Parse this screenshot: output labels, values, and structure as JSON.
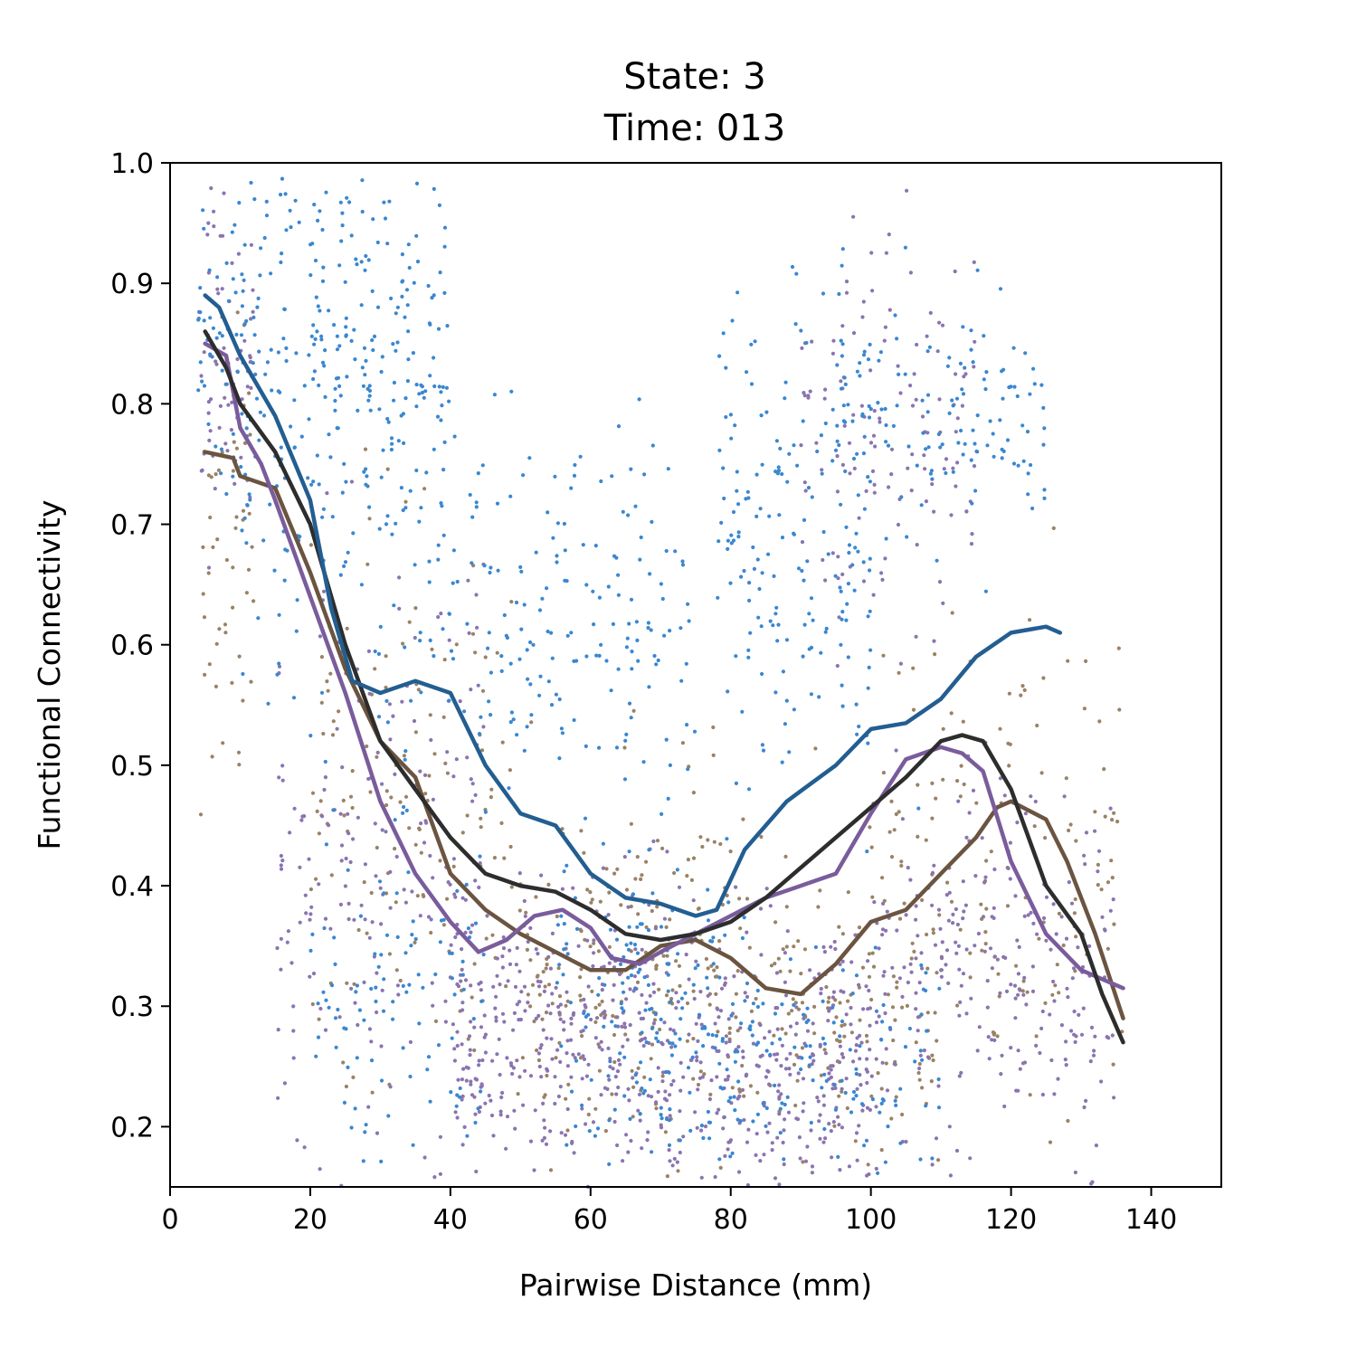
{
  "chart_data": {
    "type": "scatter",
    "title_lines": [
      "State: 3",
      "Time: 013"
    ],
    "xlabel": "Pairwise Distance (mm)",
    "ylabel": "Functional Connectivity",
    "xlim": [
      0,
      150
    ],
    "ylim": [
      0.15,
      1.0
    ],
    "xticks": [
      0,
      20,
      40,
      60,
      80,
      100,
      120,
      140
    ],
    "yticks": [
      0.2,
      0.3,
      0.4,
      0.5,
      0.6,
      0.7,
      0.8,
      0.9,
      1.0
    ],
    "xtick_labels": [
      "0",
      "20",
      "40",
      "60",
      "80",
      "100",
      "120",
      "140"
    ],
    "ytick_labels": [
      "0.2",
      "0.3",
      "0.4",
      "0.5",
      "0.6",
      "0.7",
      "0.8",
      "0.9",
      "1.0"
    ],
    "grid": false,
    "legend": "none",
    "colors": {
      "scatter_blue": "#3a87d0",
      "scatter_purple": "#8a74b0",
      "scatter_brown": "#9a8266",
      "line_blue": "#235e91",
      "line_purple": "#7a5c9c",
      "line_brown": "#6b5440",
      "line_black": "#2d2d2d"
    },
    "scatter_summary": {
      "blue_points_approx": 1300,
      "purple_points_approx": 1300,
      "brown_points_approx": 700,
      "x_range": [
        4,
        136
      ],
      "y_range": [
        0.15,
        0.99
      ]
    },
    "series": [
      {
        "color": "#235e91",
        "x": [
          5,
          7,
          10,
          15,
          20,
          23,
          26,
          30,
          35,
          40,
          45,
          50,
          55,
          60,
          65,
          70,
          75,
          78,
          82,
          88,
          95,
          100,
          105,
          110,
          115,
          120,
          125,
          127
        ],
        "y": [
          0.89,
          0.88,
          0.84,
          0.79,
          0.72,
          0.63,
          0.57,
          0.56,
          0.57,
          0.56,
          0.5,
          0.46,
          0.45,
          0.41,
          0.39,
          0.385,
          0.375,
          0.38,
          0.43,
          0.47,
          0.5,
          0.53,
          0.535,
          0.555,
          0.59,
          0.61,
          0.615,
          0.61
        ]
      },
      {
        "color": "#2d2d2d",
        "x": [
          5,
          8,
          10,
          15,
          20,
          25,
          30,
          35,
          40,
          45,
          50,
          55,
          60,
          65,
          70,
          75,
          80,
          85,
          90,
          95,
          100,
          105,
          110,
          113,
          116,
          120,
          125,
          130,
          133,
          136
        ],
        "y": [
          0.86,
          0.83,
          0.8,
          0.76,
          0.7,
          0.6,
          0.52,
          0.48,
          0.44,
          0.41,
          0.4,
          0.395,
          0.38,
          0.36,
          0.355,
          0.36,
          0.37,
          0.39,
          0.415,
          0.44,
          0.465,
          0.49,
          0.52,
          0.525,
          0.52,
          0.48,
          0.4,
          0.36,
          0.31,
          0.27
        ]
      },
      {
        "color": "#6b5440",
        "x": [
          5,
          9,
          10,
          15,
          20,
          25,
          30,
          35,
          40,
          45,
          50,
          55,
          60,
          65,
          70,
          75,
          80,
          85,
          90,
          95,
          100,
          105,
          110,
          115,
          118,
          120,
          125,
          128,
          132,
          136
        ],
        "y": [
          0.76,
          0.755,
          0.74,
          0.73,
          0.66,
          0.58,
          0.52,
          0.49,
          0.41,
          0.38,
          0.36,
          0.345,
          0.33,
          0.33,
          0.35,
          0.355,
          0.34,
          0.315,
          0.31,
          0.335,
          0.37,
          0.38,
          0.41,
          0.44,
          0.465,
          0.47,
          0.455,
          0.42,
          0.36,
          0.29
        ]
      },
      {
        "color": "#7a5c9c",
        "x": [
          5,
          8,
          10,
          13,
          15,
          20,
          25,
          30,
          35,
          40,
          44,
          48,
          52,
          56,
          60,
          63,
          67,
          70,
          75,
          80,
          85,
          90,
          95,
          100,
          105,
          110,
          113,
          116,
          120,
          125,
          130,
          136
        ],
        "y": [
          0.85,
          0.84,
          0.78,
          0.75,
          0.72,
          0.64,
          0.56,
          0.47,
          0.41,
          0.37,
          0.345,
          0.355,
          0.375,
          0.38,
          0.365,
          0.34,
          0.335,
          0.345,
          0.36,
          0.375,
          0.39,
          0.4,
          0.41,
          0.46,
          0.505,
          0.515,
          0.51,
          0.495,
          0.42,
          0.36,
          0.33,
          0.315
        ]
      }
    ]
  }
}
